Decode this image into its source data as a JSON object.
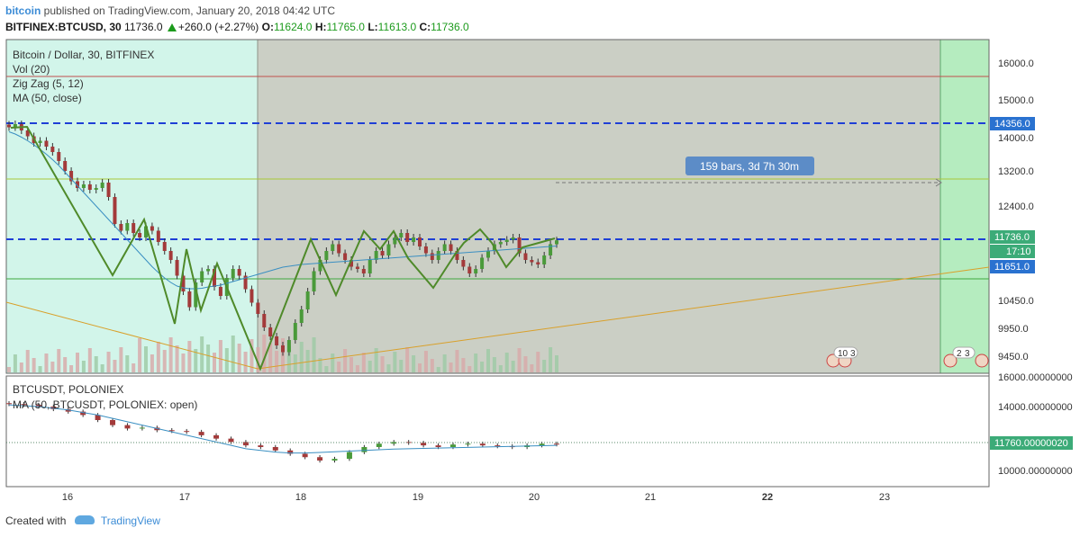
{
  "header": {
    "brand": "bitcoin",
    "published": "published on TradingView.com, January 20, 2018 04:42 UTC",
    "symbol": "BITFINEX:BTCUSD, 30",
    "last": "11736.0",
    "change": "+260.0 (+2.27%)",
    "o_label": "O:",
    "o_value": "11624.0",
    "h_label": "H:",
    "h_value": "11765.0",
    "l_label": "L:",
    "l_value": "11613.0",
    "c_label": "C:",
    "c_value": "11736.0"
  },
  "main_legend": [
    "Bitcoin / Dollar, 30, BITFINEX",
    "Vol (20)",
    "Zig Zag (5, 12)",
    "MA (50, close)"
  ],
  "sub_legend": [
    "BTCUSDT, POLONIEX",
    "MA (50, BTCUSDT, POLONIEX: open)"
  ],
  "measure_label": "159 bars, 3d 7h 30m",
  "price_axis": {
    "ticks": [
      "16000.0",
      "15000.0",
      "14000.0",
      "13200.0",
      "12400.0",
      "10450.0",
      "9950.0",
      "9450.0"
    ],
    "badge_14356": "14356.0",
    "badge_last": "11736.0",
    "badge_time": "17:10",
    "badge_11651": "11651.0"
  },
  "sub_axis": {
    "ticks": [
      "16000.00000000",
      "14000.00000000",
      "10000.00000000"
    ],
    "badge_last": "11760.00000020"
  },
  "time_axis": [
    "16",
    "17",
    "18",
    "19",
    "20",
    "21",
    "22",
    "23"
  ],
  "event_badges": [
    "10",
    "3",
    "2",
    "3"
  ],
  "footer": {
    "created": "Created with",
    "tv": "TradingView"
  },
  "colors": {
    "left_zone": "#d2f5ea",
    "mid_zone": "#cbcfc5",
    "right_zone": "#b5ecbf",
    "zigzag": "#4f8a2a",
    "ma": "#3a8fc2",
    "dash": "#1f3fd6",
    "badge_blue": "#2a72d0",
    "candle_up": "#4a9a3a",
    "candle_down": "#a33a3a"
  },
  "chart_data": {
    "type": "candlestick",
    "main": {
      "closes": [
        14250,
        14320,
        14180,
        14050,
        13900,
        13950,
        13820,
        13700,
        13500,
        13280,
        13050,
        12900,
        12980,
        12860,
        12900,
        13020,
        12700,
        12100,
        11950,
        12120,
        11900,
        11800,
        12050,
        11950,
        11700,
        11500,
        11300,
        10950,
        10600,
        10250,
        10800,
        11050,
        11100,
        10700,
        10500,
        10900,
        11100,
        10950,
        10650,
        10350,
        10100,
        9800,
        9600,
        9400,
        9250,
        9520,
        9900,
        10200,
        10600,
        11050,
        11300,
        11500,
        11650,
        11450,
        11300,
        11150,
        11100,
        11000,
        11300,
        11500,
        11400,
        11650,
        11800,
        11900,
        11700,
        11800,
        11600,
        11450,
        11300,
        11500,
        11650,
        11500,
        11300,
        11150,
        11000,
        11100,
        11350,
        11500,
        11650,
        11700,
        11750,
        11800,
        11450,
        11300,
        11250,
        11200,
        11400,
        11650,
        11736
      ],
      "ma": [
        14150,
        14100,
        14030,
        13950,
        13860,
        13760,
        13650,
        13530,
        13400,
        13250,
        13100,
        12950,
        12800,
        12650,
        12500,
        12350,
        12200,
        12050,
        11900,
        11750,
        11600,
        11450,
        11300,
        11150,
        11020,
        10900,
        10800,
        10720,
        10680,
        10660,
        10660,
        10670,
        10700,
        10720,
        10740,
        10780,
        10820,
        10860,
        10900,
        10940,
        10980,
        11020,
        11060,
        11100,
        11140,
        11160,
        11180,
        11200,
        11210,
        11220,
        11230,
        11240,
        11250,
        11260,
        11270,
        11280,
        11290,
        11300,
        11310,
        11320,
        11330,
        11340,
        11350,
        11360,
        11370,
        11380,
        11390,
        11400,
        11410,
        11420,
        11430,
        11440,
        11450,
        11460,
        11470,
        11480,
        11490,
        11500,
        11510,
        11520,
        11530,
        11540,
        11550,
        11560,
        11570,
        11580,
        11590,
        11600,
        11610
      ],
      "horizontal_levels": [
        15650,
        14356,
        12950,
        11736,
        11100
      ]
    },
    "sub": {
      "closes": [
        14150,
        14100,
        14000,
        13850,
        13700,
        13500,
        13200,
        12900,
        12700,
        12750,
        12600,
        12550,
        12500,
        12300,
        12100,
        11900,
        11700,
        11600,
        11400,
        11200,
        11000,
        10800,
        10900,
        11300,
        11600,
        11800,
        11900,
        11850,
        11700,
        11600,
        11750,
        11800,
        11700,
        11650,
        11600,
        11700,
        11800,
        11760
      ],
      "ma": [
        14100,
        14050,
        14000,
        13900,
        13800,
        13650,
        13500,
        13300,
        13100,
        12900,
        12700,
        12500,
        12300,
        12100,
        11900,
        11700,
        11500,
        11400,
        11300,
        11250,
        11250,
        11280,
        11320,
        11360,
        11400,
        11440,
        11480,
        11500,
        11520,
        11540,
        11560,
        11580,
        11600,
        11620,
        11640,
        11660,
        11680,
        11700
      ]
    }
  }
}
